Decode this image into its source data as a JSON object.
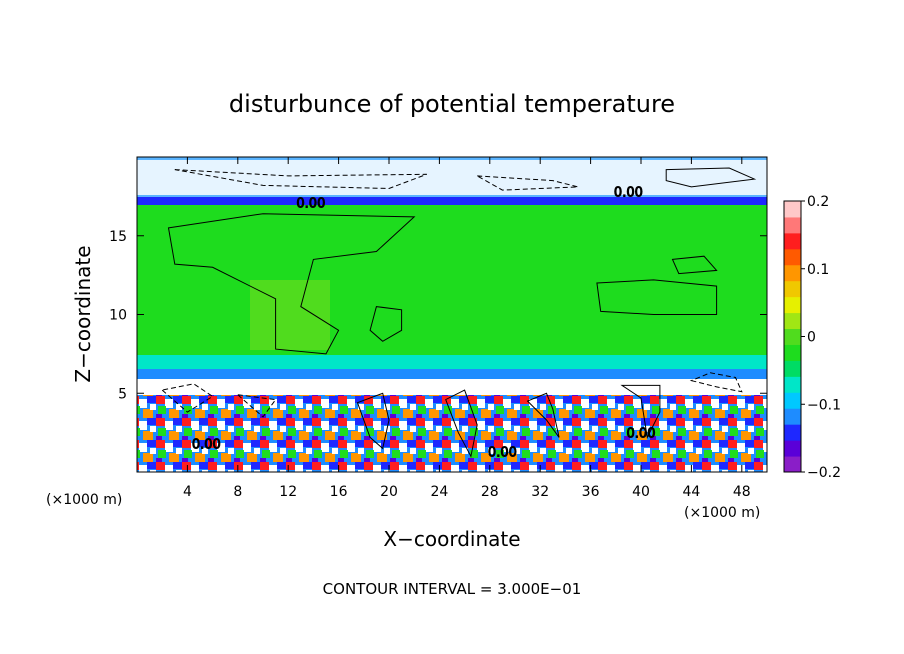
{
  "chart_data": {
    "type": "heatmap",
    "title": "disturbunce of potential temperature",
    "xlabel": "X−coordinate",
    "ylabel": "Z−coordinate",
    "x_unit": "(×1000 m)",
    "y_unit": "(×1000 m)",
    "xlim": [
      0,
      50
    ],
    "ylim": [
      0,
      20
    ],
    "x_ticks": [
      4,
      8,
      12,
      16,
      20,
      24,
      28,
      32,
      36,
      40,
      44,
      48
    ],
    "y_ticks": [
      5,
      10,
      15
    ],
    "colorbar": {
      "min": -0.2,
      "max": 0.2,
      "tick_values": [
        0.2,
        0.1,
        0,
        -0.1,
        -0.2
      ],
      "tick_labels": [
        "0.2",
        "0.1",
        "0",
        "−0.1",
        "−0.2"
      ],
      "colors": [
        "#8a1ec8",
        "#5a00d8",
        "#1e28ff",
        "#1e8cff",
        "#00c8ff",
        "#00e6c8",
        "#00dc64",
        "#1edc1e",
        "#50dc1e",
        "#a0e614",
        "#e6f000",
        "#f0c800",
        "#ff9600",
        "#ff5a00",
        "#ff1e1e",
        "#ff7878",
        "#ffc8c8"
      ]
    },
    "contour_labels": [
      "0.00",
      "0.00",
      "0.00",
      "0.00",
      "0.00"
    ],
    "footer": "CONTOUR INTERVAL = 3.000E−01"
  }
}
